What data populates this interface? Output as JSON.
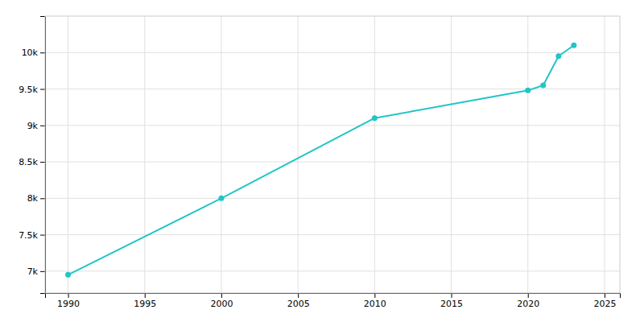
{
  "chart_data": {
    "type": "line",
    "x": [
      1990,
      2000,
      2010,
      2020,
      2021,
      2022,
      2023
    ],
    "values": [
      6950,
      8000,
      9100,
      9480,
      9550,
      9950,
      10100
    ],
    "color": "#22c5c5",
    "marker": "circle",
    "xlim": [
      1988.5,
      2026
    ],
    "ylim": [
      6700,
      10500
    ],
    "xticks": [
      1990,
      1995,
      2000,
      2005,
      2010,
      2015,
      2020,
      2025
    ],
    "yticks": [
      {
        "value": 7000,
        "label": "7k"
      },
      {
        "value": 7500,
        "label": "7.5k"
      },
      {
        "value": 8000,
        "label": "8k"
      },
      {
        "value": 8500,
        "label": "8.5k"
      },
      {
        "value": 9000,
        "label": "9k"
      },
      {
        "value": 9500,
        "label": "9.5k"
      },
      {
        "value": 10000,
        "label": "10k"
      }
    ],
    "grid": true
  }
}
